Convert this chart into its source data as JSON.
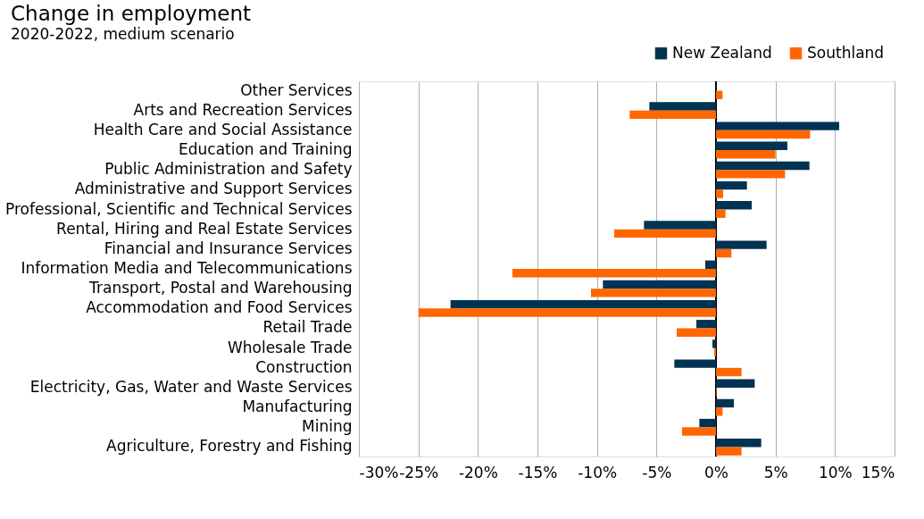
{
  "chart_data": {
    "type": "bar",
    "orientation": "horizontal",
    "title": "Change in employment",
    "subtitle": "2020-2022, medium scenario",
    "categories": [
      "Other Services",
      "Arts and Recreation Services",
      "Health Care and Social Assistance",
      "Education and Training",
      "Public Administration and Safety",
      "Administrative and Support Services",
      "Professional, Scientific and Technical Services",
      "Rental, Hiring and Real Estate Services",
      "Financial and Insurance Services",
      "Information Media and Telecommunications",
      "Transport, Postal and Warehousing",
      "Accommodation and Food Services",
      "Retail Trade",
      "Wholesale Trade",
      "Construction",
      "Electricity, Gas, Water and Waste Services",
      "Manufacturing",
      "Mining",
      "Agriculture, Forestry and Fishing"
    ],
    "series": [
      {
        "name": "New Zealand",
        "color": "#003352",
        "values": [
          0.05,
          -5.6,
          10.35,
          6.0,
          7.85,
          2.6,
          3.0,
          -6.05,
          4.25,
          -0.9,
          -9.5,
          -22.3,
          -1.65,
          -0.3,
          -3.5,
          3.25,
          1.5,
          -1.4,
          3.8
        ]
      },
      {
        "name": "Southland",
        "color": "#ff6600",
        "values": [
          0.55,
          -7.25,
          7.9,
          5.0,
          5.8,
          0.6,
          0.8,
          -8.55,
          1.3,
          -17.1,
          -10.5,
          -25.0,
          -3.3,
          -0.15,
          2.15,
          0.05,
          0.55,
          -2.85,
          2.15
        ]
      }
    ],
    "xlim": [
      -30,
      15
    ],
    "xticks": [
      {
        "value": -30,
        "label": "-30%"
      },
      {
        "value": -25,
        "label": "-25%"
      },
      {
        "value": -20,
        "label": "-20%"
      },
      {
        "value": -15,
        "label": "-15%"
      },
      {
        "value": -10,
        "label": "-10%"
      },
      {
        "value": -5,
        "label": "-5%"
      },
      {
        "value": 0,
        "label": "0%"
      },
      {
        "value": 5,
        "label": "5%"
      },
      {
        "value": 10,
        "label": "10%"
      },
      {
        "value": 15,
        "label": "15%"
      }
    ],
    "grid": "x",
    "legend": "top right"
  }
}
